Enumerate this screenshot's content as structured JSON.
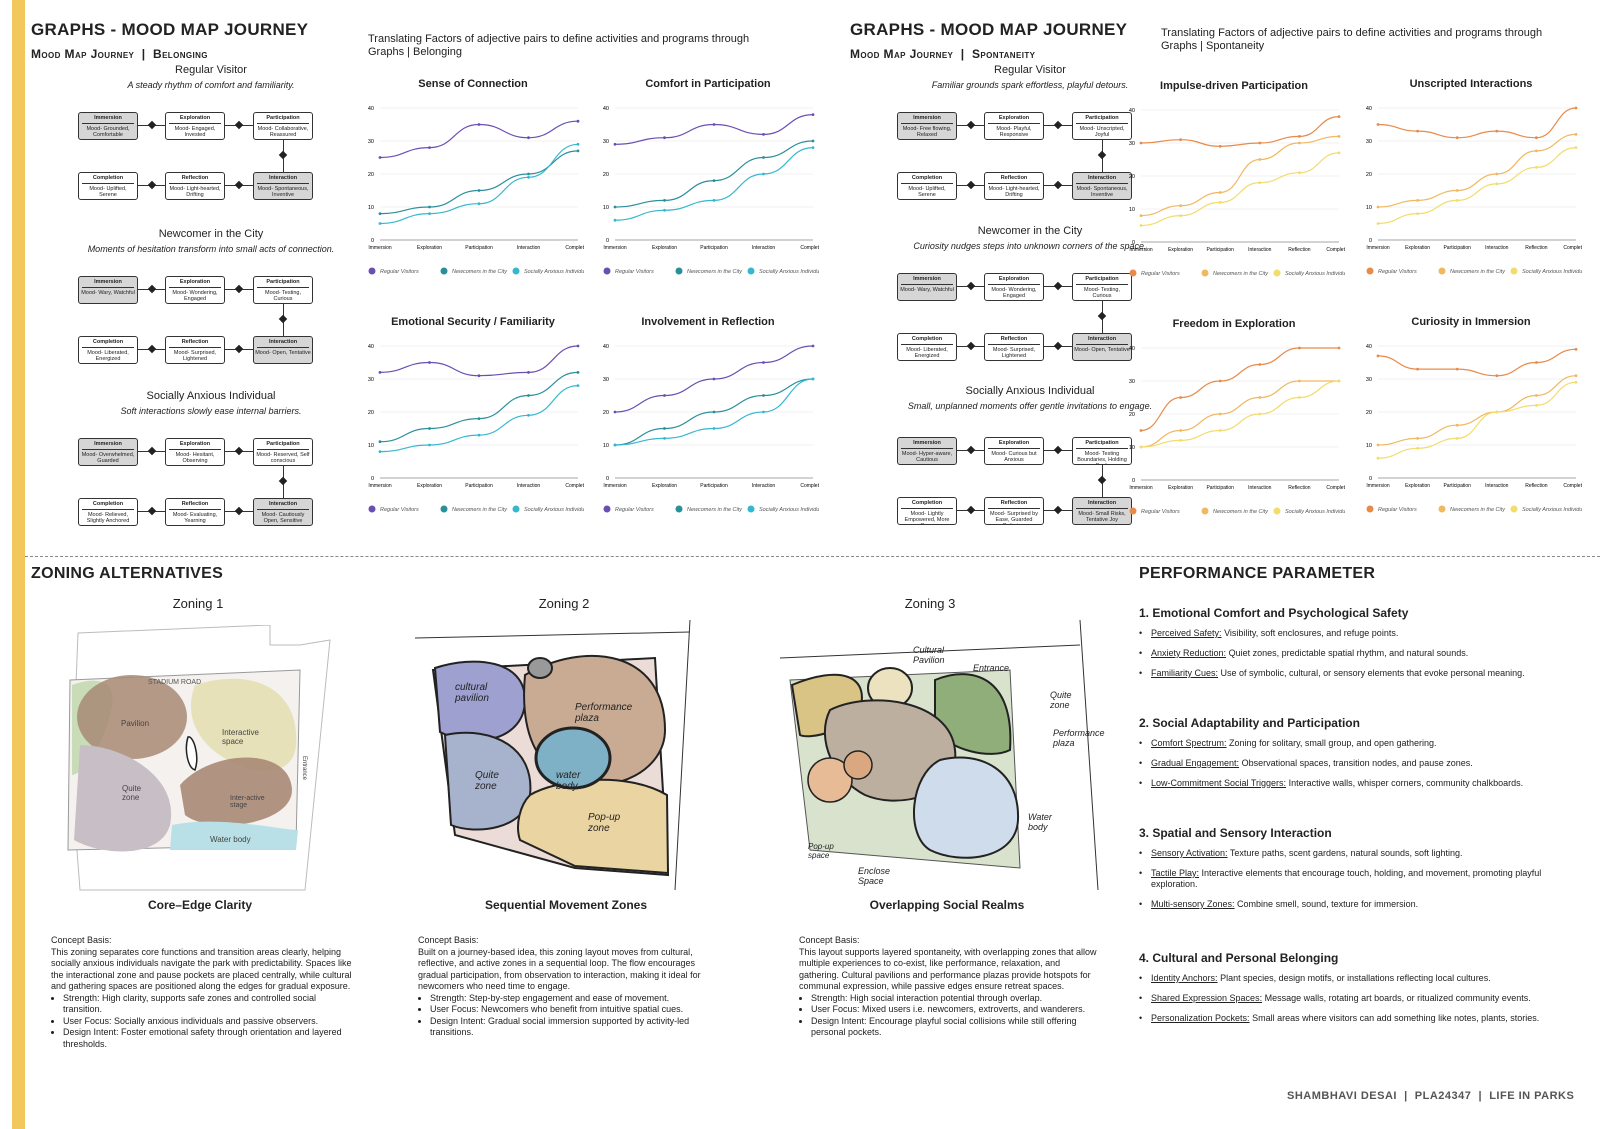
{
  "header_left": {
    "title": "GRAPHS - MOOD MAP JOURNEY",
    "subtitle_a": "Mood Map Journey",
    "subtitle_b": "Belonging",
    "intro": "Translating Factors of adjective pairs to define activities and programs through Graphs | Belonging"
  },
  "header_right": {
    "title": "GRAPHS - MOOD MAP JOURNEY",
    "subtitle_a": "Mood Map Journey",
    "subtitle_b": "Spontaneity",
    "intro": "Translating Factors of adjective pairs to define activities and programs through Graphs | Spontaneity"
  },
  "belonging": [
    {
      "title": "Regular Visitor",
      "desc": "A steady rhythm of comfort and familiarity.",
      "flow": [
        [
          "Immersion",
          "Mood- Grounded, Comfortable",
          true
        ],
        [
          "Exploration",
          "Mood- Engaged, Invested",
          false
        ],
        [
          "Participation",
          "Mood- Collaborative, Reassured",
          false
        ],
        [
          "Interaction",
          "Mood- Spontaneous, Inventive",
          true
        ],
        [
          "Reflection",
          "Mood- Light-hearted, Drifting",
          false
        ],
        [
          "Completion",
          "Mood- Uplifted, Serene",
          false
        ]
      ]
    },
    {
      "title": "Newcomer in the City",
      "desc": "Moments of hesitation transform into small acts of connection.",
      "flow": [
        [
          "Immersion",
          "Mood- Wary, Watchful",
          true
        ],
        [
          "Exploration",
          "Mood- Wondering, Engaged",
          false
        ],
        [
          "Participation",
          "Mood- Testing, Curious",
          false
        ],
        [
          "Interaction",
          "Mood- Open, Tentative",
          true
        ],
        [
          "Reflection",
          "Mood- Surprised, Lightened",
          false
        ],
        [
          "Completion",
          "Mood- Liberated, Energized",
          false
        ]
      ]
    },
    {
      "title": "Socially Anxious Individual",
      "desc": "Soft interactions slowly ease internal barriers.",
      "flow": [
        [
          "Immersion",
          "Mood- Overwhelmed, Guarded",
          true
        ],
        [
          "Exploration",
          "Mood- Hesitant, Observing",
          false
        ],
        [
          "Participation",
          "Mood- Reserved, Self conscious",
          false
        ],
        [
          "Interaction",
          "Mood- Cautiously Open, Sensitive",
          true
        ],
        [
          "Reflection",
          "Mood- Evaluating, Yearning",
          false
        ],
        [
          "Completion",
          "Mood- Relieved, Slightly Anchored",
          false
        ]
      ]
    }
  ],
  "spontaneity": [
    {
      "title": "Regular Visitor",
      "desc": "Familiar grounds spark effortless, playful detours.",
      "flow": [
        [
          "Immersion",
          "Mood- Free flowing, Relaxed",
          true
        ],
        [
          "Exploration",
          "Mood- Playful, Responsive",
          false
        ],
        [
          "Participation",
          "Mood- Unscripted, Joyful",
          false
        ],
        [
          "Interaction",
          "Mood- Spontaneous, Inventive",
          true
        ],
        [
          "Reflection",
          "Mood- Light-hearted, Drifting",
          false
        ],
        [
          "Completion",
          "Mood- Uplifted, Serene",
          false
        ]
      ]
    },
    {
      "title": "Newcomer in the City",
      "desc": "Curiosity nudges steps into unknown corners of the space.",
      "flow": [
        [
          "Immersion",
          "Mood- Wary, Watchful",
          true
        ],
        [
          "Exploration",
          "Mood- Wondering, Engaged",
          false
        ],
        [
          "Participation",
          "Mood- Testing, Curious",
          false
        ],
        [
          "Interaction",
          "Mood- Open, Tentative",
          true
        ],
        [
          "Reflection",
          "Mood- Surprised, Lightened",
          false
        ],
        [
          "Completion",
          "Mood- Liberated, Energized",
          false
        ]
      ]
    },
    {
      "title": "Socially Anxious Individual",
      "desc": "Small, unplanned moments offer gentle invitations to engage.",
      "flow": [
        [
          "Immersion",
          "Mood- Hyper-aware, Cautious",
          true
        ],
        [
          "Exploration",
          "Mood- Curious but Anxious",
          false
        ],
        [
          "Participation",
          "Mood- Testing Boundaries, Holding Back",
          false
        ],
        [
          "Interaction",
          "Mood- Small Risks, Tentative Joy",
          true
        ],
        [
          "Reflection",
          "Mood- Surprised by Ease, Guarded Optimism",
          false
        ],
        [
          "Completion",
          "Mood- Lightly Empowered, More Open",
          false
        ]
      ]
    }
  ],
  "chart_data": [
    {
      "type": "line",
      "title": "Sense of Connection",
      "categories": [
        "Immersion",
        "Exploration",
        "Participation",
        "Interaction",
        "Completion"
      ],
      "ylim": [
        0,
        40
      ],
      "ticks": [
        0,
        10,
        20,
        30,
        40
      ],
      "colors": [
        "#6a4fb3",
        "#2b8f9a",
        "#35b8cf"
      ],
      "series": [
        {
          "name": "Regular Visitors",
          "values": [
            25,
            28,
            35,
            31,
            36
          ]
        },
        {
          "name": "Newcomers in the City",
          "values": [
            8,
            10,
            15,
            20,
            27
          ]
        },
        {
          "name": "Socially Anxious Individual",
          "values": [
            5,
            8,
            11,
            19,
            29
          ]
        }
      ]
    },
    {
      "type": "line",
      "title": "Comfort in Participation",
      "categories": [
        "Immersion",
        "Exploration",
        "Participation",
        "Interaction",
        "Completion"
      ],
      "ylim": [
        0,
        40
      ],
      "ticks": [
        0,
        10,
        20,
        30,
        40
      ],
      "colors": [
        "#6a4fb3",
        "#2b8f9a",
        "#35b8cf"
      ],
      "series": [
        {
          "name": "Regular Visitors",
          "values": [
            29,
            31,
            35,
            32,
            38
          ]
        },
        {
          "name": "Newcomers in the City",
          "values": [
            10,
            12,
            18,
            25,
            30
          ]
        },
        {
          "name": "Socially Anxious Individual",
          "values": [
            6,
            9,
            12,
            20,
            28
          ]
        }
      ]
    },
    {
      "type": "line",
      "title": "Emotional Security / Familiarity",
      "categories": [
        "Immersion",
        "Exploration",
        "Participation",
        "Interaction",
        "Completion"
      ],
      "ylim": [
        0,
        40
      ],
      "ticks": [
        0,
        10,
        20,
        30,
        40
      ],
      "colors": [
        "#6a4fb3",
        "#2b8f9a",
        "#35b8cf"
      ],
      "series": [
        {
          "name": "Regular Visitors",
          "values": [
            32,
            35,
            31,
            32,
            40
          ]
        },
        {
          "name": "Newcomers in the City",
          "values": [
            11,
            15,
            18,
            25,
            32
          ]
        },
        {
          "name": "Socially Anxious Individual",
          "values": [
            8,
            10,
            13,
            19,
            28
          ]
        }
      ]
    },
    {
      "type": "line",
      "title": "Involvement in Reflection",
      "categories": [
        "Immersion",
        "Exploration",
        "Participation",
        "Interaction",
        "Completion"
      ],
      "ylim": [
        0,
        40
      ],
      "ticks": [
        0,
        10,
        20,
        30,
        40
      ],
      "colors": [
        "#6a4fb3",
        "#2b8f9a",
        "#35b8cf"
      ],
      "series": [
        {
          "name": "Regular Visitors",
          "values": [
            20,
            25,
            30,
            35,
            40
          ]
        },
        {
          "name": "Newcomers in the City",
          "values": [
            10,
            15,
            20,
            25,
            30
          ]
        },
        {
          "name": "Socially Anxious Individual",
          "values": [
            10,
            12,
            15,
            20,
            30
          ]
        }
      ]
    },
    {
      "type": "line",
      "title": "Impulse-driven Participation",
      "categories": [
        "Immersion",
        "Exploration",
        "Participation",
        "Interaction",
        "Reflection",
        "Completion"
      ],
      "ylim": [
        0,
        40
      ],
      "ticks": [
        0,
        10,
        20,
        30,
        40
      ],
      "colors": [
        "#e88a4a",
        "#f0b860",
        "#f2dc6a"
      ],
      "series": [
        {
          "name": "Regular Visitors",
          "values": [
            30,
            31,
            29,
            30,
            32,
            38
          ]
        },
        {
          "name": "Newcomers in the City",
          "values": [
            8,
            11,
            15,
            25,
            30,
            32
          ]
        },
        {
          "name": "Socially Anxious Individual",
          "values": [
            5,
            8,
            12,
            18,
            21,
            27
          ]
        }
      ]
    },
    {
      "type": "line",
      "title": "Unscripted Interactions",
      "categories": [
        "Immersion",
        "Exploration",
        "Participation",
        "Interaction",
        "Reflection",
        "Completion"
      ],
      "ylim": [
        0,
        40
      ],
      "ticks": [
        0,
        10,
        20,
        30,
        40
      ],
      "colors": [
        "#e88a4a",
        "#f0b860",
        "#f2dc6a"
      ],
      "series": [
        {
          "name": "Regular Visitors",
          "values": [
            35,
            33,
            31,
            33,
            31,
            40
          ]
        },
        {
          "name": "Newcomers in the City",
          "values": [
            10,
            12,
            15,
            20,
            27,
            32
          ]
        },
        {
          "name": "Socially Anxious Individual",
          "values": [
            5,
            8,
            12,
            17,
            22,
            28
          ]
        }
      ]
    },
    {
      "type": "line",
      "title": "Freedom in Exploration",
      "categories": [
        "Immersion",
        "Exploration",
        "Participation",
        "Interaction",
        "Reflection",
        "Completion"
      ],
      "ylim": [
        0,
        40
      ],
      "ticks": [
        0,
        10,
        20,
        30,
        40
      ],
      "colors": [
        "#e88a4a",
        "#f0b860",
        "#f2dc6a"
      ],
      "series": [
        {
          "name": "Regular Visitors",
          "values": [
            15,
            25,
            30,
            35,
            40,
            40
          ]
        },
        {
          "name": "Newcomers in the City",
          "values": [
            10,
            15,
            20,
            25,
            30,
            30
          ]
        },
        {
          "name": "Socially Anxious Individual",
          "values": [
            10,
            12,
            15,
            20,
            25,
            30
          ]
        }
      ]
    },
    {
      "type": "line",
      "title": "Curiosity in Immersion",
      "categories": [
        "Immersion",
        "Exploration",
        "Participation",
        "Interaction",
        "Reflection",
        "Completion"
      ],
      "ylim": [
        0,
        40
      ],
      "ticks": [
        0,
        10,
        20,
        30,
        40
      ],
      "colors": [
        "#e88a4a",
        "#f0b860",
        "#f2dc6a"
      ],
      "series": [
        {
          "name": "Regular Visitors",
          "values": [
            37,
            33,
            33,
            31,
            35,
            39
          ]
        },
        {
          "name": "Newcomers in the City",
          "values": [
            10,
            12,
            16,
            20,
            25,
            31
          ]
        },
        {
          "name": "Socially Anxious Individual",
          "values": [
            6,
            9,
            12,
            20,
            22,
            29
          ]
        }
      ]
    }
  ],
  "zoning": {
    "title": "ZONING ALTERNATIVES",
    "items": [
      {
        "label": "Zoning 1",
        "name": "Core–Edge Clarity",
        "basis": "Concept Basis:",
        "text": "This zoning separates core functions and transition areas clearly, helping socially anxious individuals navigate the park with predictability. Spaces like the interactional zone and pause pockets are placed centrally, while cultural and gathering spaces are positioned along the edges for gradual exposure.",
        "bullets": [
          "Strength: High clarity, supports safe zones and controlled social transition.",
          "User Focus: Socially anxious individuals and passive observers.",
          "Design Intent: Foster emotional safety through orientation and layered thresholds."
        ],
        "map_labels": [
          "Pavilion",
          "Interactive space",
          "Quite zone",
          "Inter-active stage",
          "Water body",
          "Entrance",
          "STADIUM ROAD"
        ]
      },
      {
        "label": "Zoning 2",
        "name": "Sequential Movement Zones",
        "basis": "Concept Basis:",
        "text": "Built on a journey-based idea, this zoning layout moves from cultural, reflective, and active zones in a sequential loop. The flow encourages gradual participation, from observation to interaction, making it ideal for newcomers who need time to engage.",
        "bullets": [
          "Strength: Step-by-step engagement and ease of movement.",
          "User Focus: Newcomers who benefit from intuitive spatial cues.",
          "Design Intent: Gradual social immersion supported by activity-led transitions."
        ],
        "map_labels": [
          "cultural pavilion",
          "Performance plaza",
          "Quite zone",
          "water body",
          "Pop-up zone"
        ]
      },
      {
        "label": "Zoning 3",
        "name": "Overlapping Social Realms",
        "basis": "Concept Basis:",
        "text": "This layout supports layered spontaneity, with overlapping zones that allow multiple experiences to co-exist, like performance, relaxation, and gathering. Cultural pavilions and performance plazas provide hotspots for communal expression, while passive edges ensure retreat spaces.",
        "bullets": [
          "Strength: High social interaction potential through overlap.",
          "User Focus: Mixed users i.e. newcomers, extroverts, and wanderers.",
          "Design Intent: Encourage playful social collisions while still offering personal pockets."
        ],
        "map_labels": [
          "Cultural Pavilion",
          "Entrance",
          "Quite zone",
          "Performance plaza",
          "Water body",
          "Enclose Space",
          "Pop-up space"
        ]
      }
    ]
  },
  "performance": {
    "title": "PERFORMANCE PARAMETER",
    "sections": [
      {
        "heading": "1. Emotional Comfort and Psychological Safety",
        "items": [
          [
            "Perceived Safety:",
            "Visibility, soft enclosures, and refuge points."
          ],
          [
            "Anxiety Reduction:",
            "Quiet zones, predictable spatial rhythm, and natural sounds."
          ],
          [
            "Familiarity Cues:",
            "Use of symbolic, cultural, or sensory elements that evoke personal meaning."
          ]
        ]
      },
      {
        "heading": "2. Social Adaptability and Participation",
        "items": [
          [
            "Comfort Spectrum:",
            "Zoning for solitary, small group, and open gathering."
          ],
          [
            "Gradual Engagement:",
            "Observational spaces, transition nodes, and pause zones."
          ],
          [
            "Low-Commitment Social Triggers:",
            "Interactive walls, whisper corners, community chalkboards."
          ]
        ]
      },
      {
        "heading": "3. Spatial and Sensory Interaction",
        "items": [
          [
            "Sensory Activation:",
            "Texture paths, scent gardens, natural sounds, soft lighting."
          ],
          [
            "Tactile Play:",
            "Interactive elements that encourage touch, holding, and movement, promoting playful exploration."
          ],
          [
            "Multi-sensory Zones:",
            "Combine smell, sound, texture for immersion."
          ]
        ]
      },
      {
        "heading": "4. Cultural and Personal Belonging",
        "items": [
          [
            "Identity Anchors:",
            "Plant species, design motifs, or installations reflecting local cultures."
          ],
          [
            "Shared Expression Spaces:",
            "Message walls, rotating art boards, or ritualized community events."
          ],
          [
            "Personalization Pockets:",
            "Small areas where visitors can add something like notes, plants, stories."
          ]
        ]
      }
    ]
  },
  "footer": {
    "name": "SHAMBHAVI DESAI",
    "id": "PLA24347",
    "project": "LIFE IN PARKS"
  }
}
